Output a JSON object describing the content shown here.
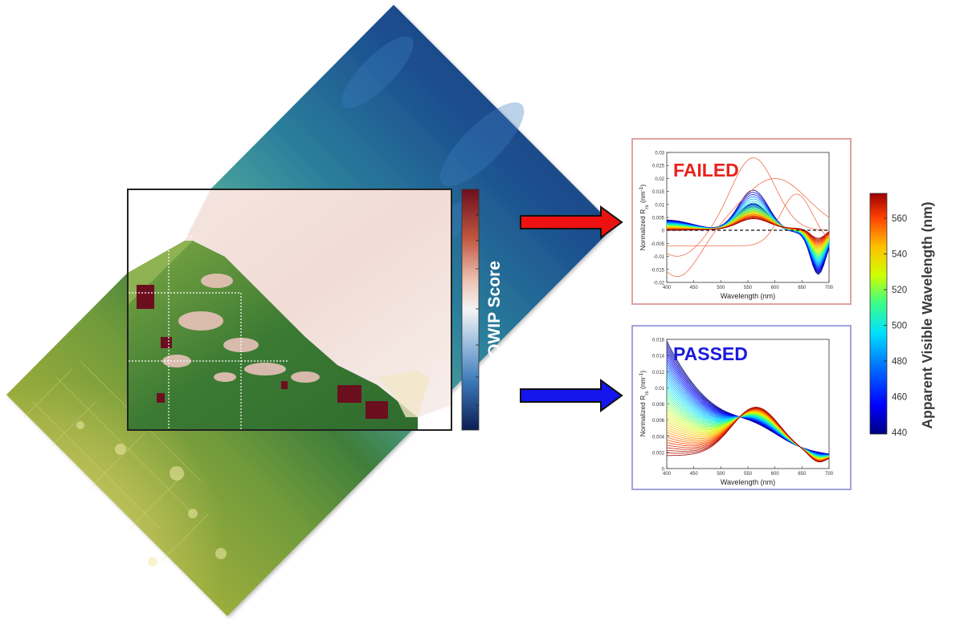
{
  "qwip_colorbar": {
    "label": "QWIP Score"
  },
  "wavelength_colorbar": {
    "label": "Apparent Visible Wavelength (nm)",
    "ticks": [
      "560",
      "540",
      "520",
      "500",
      "480",
      "460",
      "440"
    ],
    "stops": [
      "#00007f",
      "#0000ff",
      "#0080ff",
      "#00e0ff",
      "#40ff80",
      "#d0ff00",
      "#ffc000",
      "#ff4000",
      "#9b0000"
    ]
  },
  "failed_panel": {
    "label": "FAILED",
    "label_color": "#e8231c",
    "border_color": "#e0a3a3",
    "arrow_color": "#ee1111",
    "ylabel": "Normalized R",
    "ylabel_sub": "rs",
    "ylabel_unit": " (nm",
    "ylabel_sup": "-1",
    "ylabel_close": ")",
    "xlabel": "Wavelength (nm)",
    "xticks": [
      "400",
      "450",
      "500",
      "550",
      "600",
      "650",
      "700"
    ],
    "yticks": [
      "0.03",
      "0.025",
      "0.02",
      "0.015",
      "0.01",
      "0.005",
      "0",
      "-0.005",
      "-0.01",
      "-0.015",
      "-0.02"
    ]
  },
  "passed_panel": {
    "label": "PASSED",
    "label_color": "#1a1adc",
    "border_color": "#a3a3dc",
    "arrow_color": "#1515ee",
    "ylabel": "Normalized R",
    "ylabel_sub": "rs",
    "ylabel_unit": " (nm",
    "ylabel_sup": "-1",
    "ylabel_close": ")",
    "xlabel": "Wavelength (nm)",
    "xticks": [
      "400",
      "450",
      "500",
      "550",
      "600",
      "650",
      "700"
    ],
    "yticks": [
      "0.016",
      "0.014",
      "0.012",
      "0.01",
      "0.008",
      "0.006",
      "0.004",
      "0.002",
      "0"
    ]
  }
}
